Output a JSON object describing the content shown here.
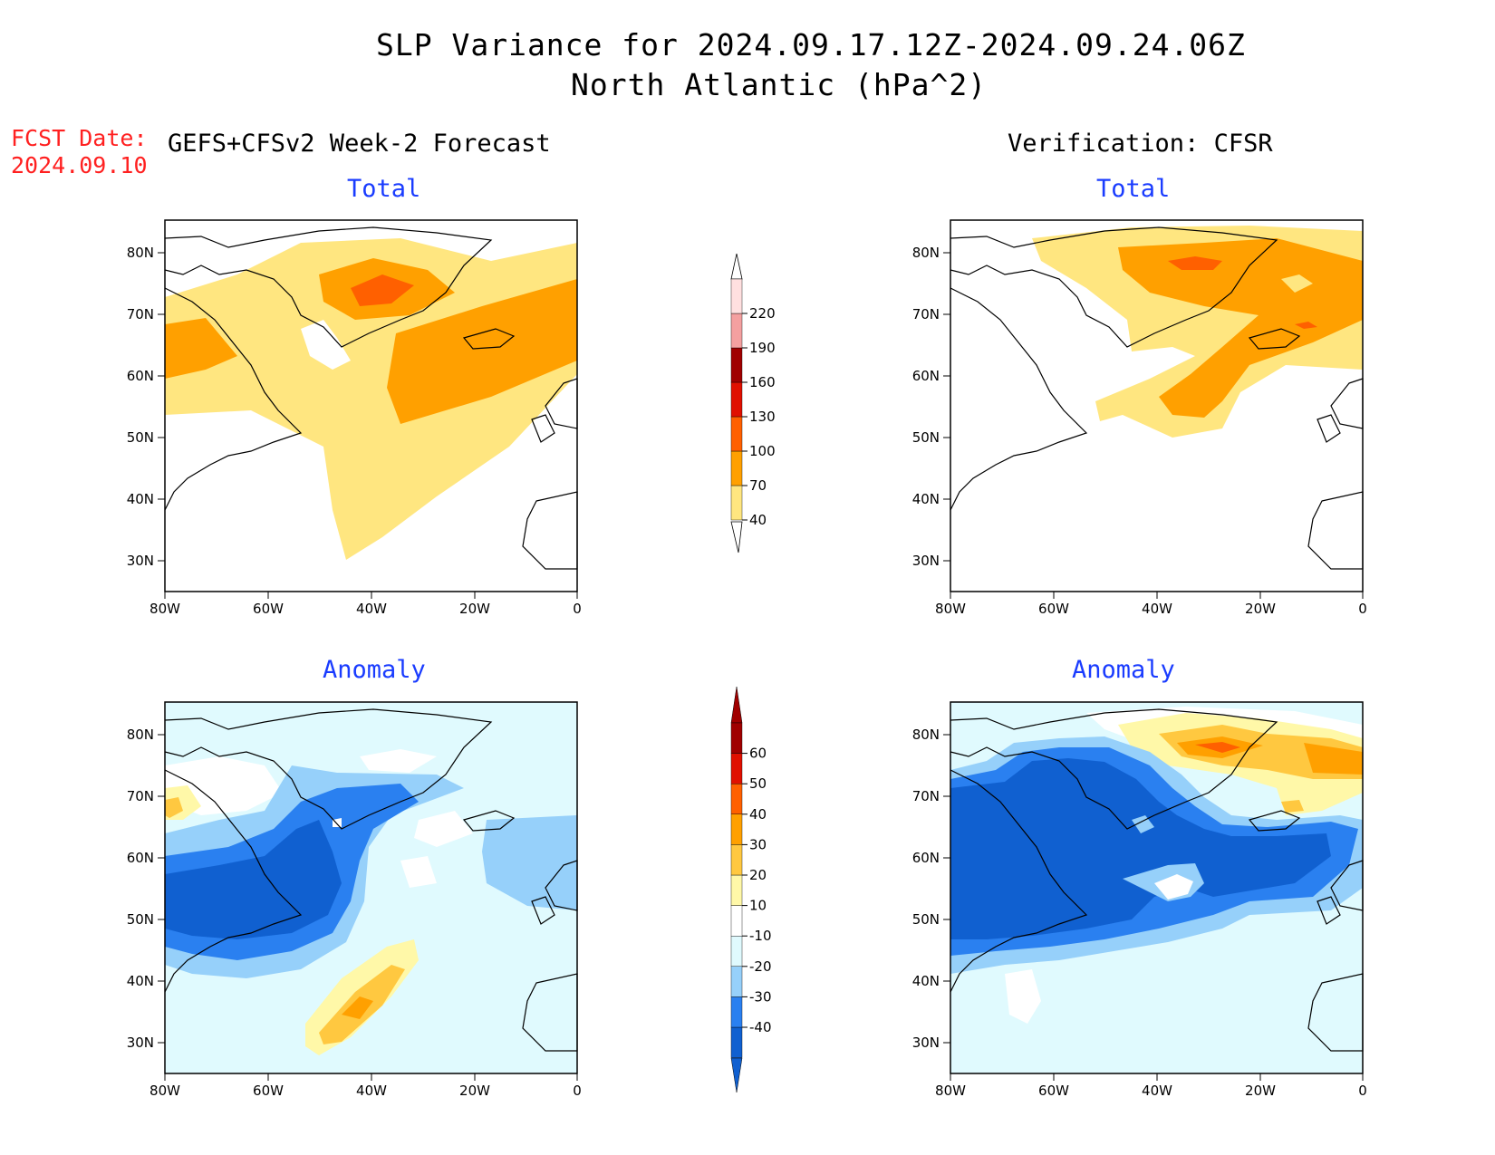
{
  "title_line1": "SLP Variance for 2024.09.17.12Z-2024.09.24.06Z",
  "title_line2": "North Atlantic (hPa^2)",
  "fcst_label": "FCST Date:",
  "fcst_date": "2024.09.10",
  "left_header": "GEFS+CFSv2 Week-2 Forecast",
  "right_header": "Verification: CFSR",
  "panel_titles": {
    "forecast_total": "Total",
    "verif_total": "Total",
    "forecast_anomaly": "Anomaly",
    "verif_anomaly": "Anomaly"
  },
  "map": {
    "lon_ticks": [
      "80W",
      "60W",
      "40W",
      "20W",
      "0"
    ],
    "lat_ticks": [
      "80N",
      "70N",
      "60N",
      "50N",
      "40N",
      "30N"
    ]
  },
  "total_colorbar": {
    "levels": [
      "40",
      "70",
      "100",
      "130",
      "160",
      "190",
      "220"
    ],
    "colors": [
      "#ffe680",
      "#ffa000",
      "#ff6000",
      "#e01000",
      "#a00000",
      "#f4a0a0",
      "#ffe0e0"
    ]
  },
  "anomaly_colorbar": {
    "levels": [
      "-40",
      "-30",
      "-20",
      "-10",
      "10",
      "20",
      "30",
      "40",
      "50",
      "60"
    ],
    "colors": [
      "#1060d0",
      "#2a80f0",
      "#96d0fa",
      "#e0fafe",
      "#ffffff",
      "#fff8a8",
      "#ffc840",
      "#ffa000",
      "#ff6000",
      "#e01000",
      "#a00000"
    ]
  },
  "fill_colors": {
    "t40": "#ffe680",
    "t70": "#ffa000",
    "t100": "#ff6000",
    "a_n40": "#1060d0",
    "a_n30": "#2a80f0",
    "a_n20": "#96d0fa",
    "a_n10": "#e0fafe",
    "a_p10": "#fff8a8",
    "a_p20": "#ffc840",
    "a_p30": "#ffa000"
  }
}
